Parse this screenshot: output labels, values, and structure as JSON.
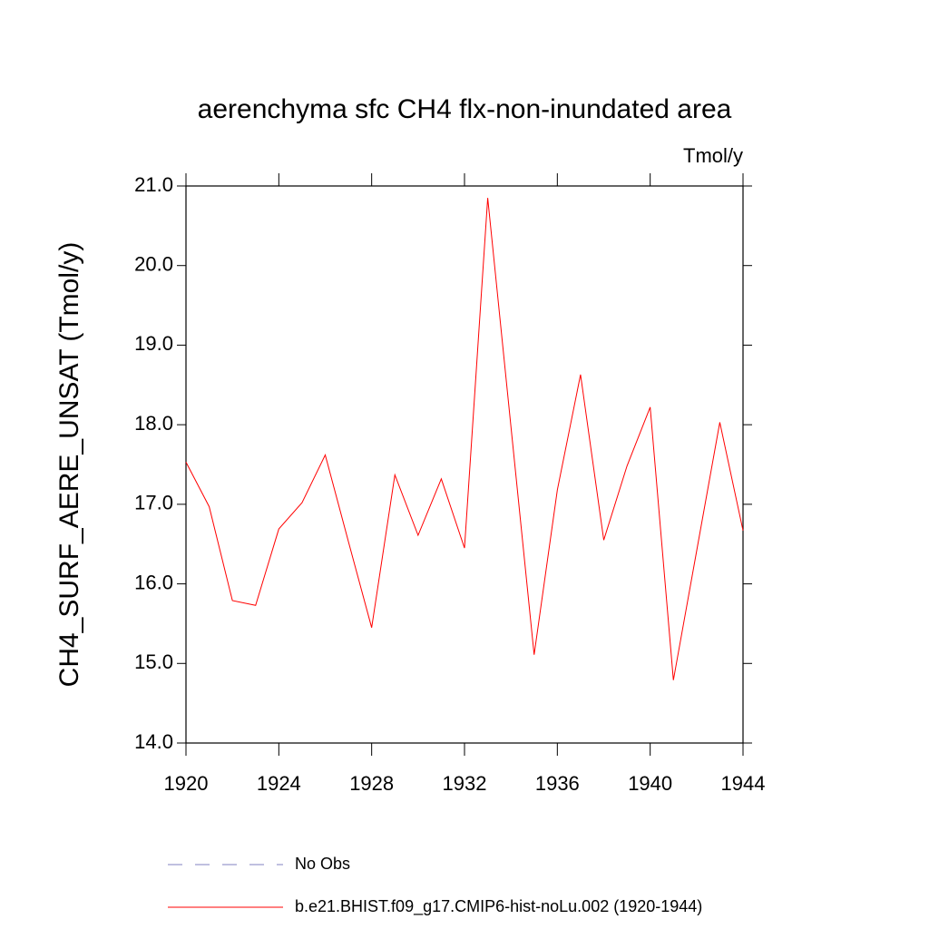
{
  "chart_data": {
    "type": "line",
    "title": "aerenchyma sfc CH4 flx-non-inundated area",
    "units": "Tmol/y",
    "y_label": "CH4_SURF_AERE_UNSAT  (Tmol/y)",
    "x": [
      1920,
      1921,
      1922,
      1923,
      1924,
      1925,
      1926,
      1927,
      1928,
      1929,
      1930,
      1931,
      1932,
      1933,
      1934,
      1935,
      1936,
      1937,
      1938,
      1939,
      1940,
      1941,
      1942,
      1943,
      1944
    ],
    "series": [
      {
        "name": "b.e21.BHIST.f09_g17.CMIP6-hist-noLu.002 (1920-1944)",
        "color": "#ff0000",
        "values": [
          17.53,
          16.97,
          15.79,
          15.73,
          16.69,
          17.02,
          17.62,
          16.53,
          15.45,
          17.37,
          16.61,
          17.32,
          16.45,
          20.85,
          17.98,
          15.11,
          17.18,
          18.63,
          16.55,
          17.48,
          18.22,
          14.79,
          16.41,
          18.03,
          16.67
        ]
      }
    ],
    "legend_extra": [
      {
        "name": "No Obs",
        "color": "#8080c0",
        "style": "dashed"
      }
    ],
    "xlim": [
      1920,
      1944
    ],
    "xticks": [
      1920,
      1924,
      1928,
      1932,
      1936,
      1940,
      1944
    ],
    "ylim": [
      14,
      21
    ],
    "yticks": [
      {
        "value": 14,
        "label": "14.0"
      },
      {
        "value": 15,
        "label": "15.0"
      },
      {
        "value": 16,
        "label": "16.0"
      },
      {
        "value": 17,
        "label": "17.0"
      },
      {
        "value": 18,
        "label": "18.0"
      },
      {
        "value": 19,
        "label": "19.0"
      },
      {
        "value": 20,
        "label": "20.0"
      },
      {
        "value": 21,
        "label": "21.0"
      }
    ]
  }
}
